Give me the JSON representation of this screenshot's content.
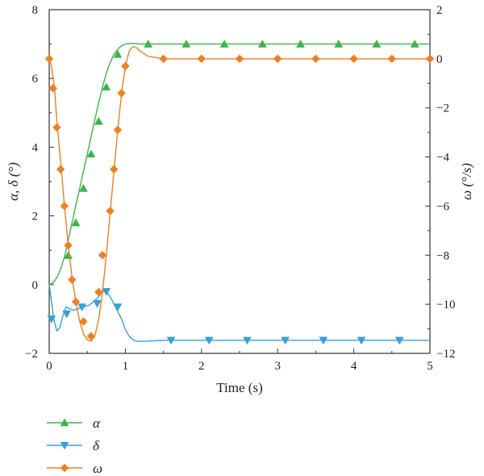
{
  "chart_data": {
    "type": "line",
    "xlabel": "Time (s)",
    "ylabel_left": "α, δ (°)",
    "ylabel_right": "ω (°/s)",
    "xlim": [
      0,
      5
    ],
    "ylim_left": [
      -2,
      8
    ],
    "ylim_right": [
      -12,
      2
    ],
    "xticks": [
      0,
      1,
      2,
      3,
      4,
      5
    ],
    "yticks_left": [
      -2,
      0,
      2,
      4,
      6,
      8
    ],
    "yticks_right": [
      -12,
      -10,
      -8,
      -6,
      -4,
      -2,
      0,
      2
    ],
    "grid": false,
    "legend_position": "bottom-left",
    "series": [
      {
        "name": "α",
        "axis": "left",
        "color": "#3db54a",
        "marker": "triangle-up",
        "x": [
          0,
          0.05,
          0.1,
          0.15,
          0.2,
          0.25,
          0.3,
          0.35,
          0.4,
          0.45,
          0.5,
          0.55,
          0.6,
          0.65,
          0.7,
          0.75,
          0.8,
          0.85,
          0.9,
          0.95,
          1.0,
          1.1,
          1.2,
          1.3,
          1.5,
          2,
          3,
          4,
          5
        ],
        "y": [
          0,
          0.05,
          0.2,
          0.45,
          0.8,
          1.3,
          1.8,
          2.3,
          2.8,
          3.3,
          3.8,
          4.3,
          4.8,
          5.3,
          5.75,
          6.15,
          6.45,
          6.7,
          6.85,
          6.95,
          7.0,
          7.02,
          7.0,
          7.0,
          7.0,
          7.0,
          7.0,
          7.0,
          7.0
        ],
        "markers_x": [
          0.25,
          0.35,
          0.45,
          0.55,
          0.65,
          0.75,
          0.9,
          1.3,
          1.8,
          2.3,
          2.8,
          3.3,
          3.8,
          4.3,
          4.8
        ],
        "markers_y": [
          0.85,
          1.8,
          2.8,
          3.8,
          4.75,
          5.75,
          6.7,
          7.0,
          7.0,
          7.0,
          7.0,
          7.0,
          7.0,
          7.0,
          7.0
        ]
      },
      {
        "name": "δ",
        "axis": "left",
        "color": "#3a9fd8",
        "marker": "triangle-down",
        "x": [
          0,
          0.03,
          0.06,
          0.1,
          0.14,
          0.18,
          0.22,
          0.27,
          0.32,
          0.38,
          0.45,
          0.52,
          0.58,
          0.65,
          0.7,
          0.75,
          0.8,
          0.87,
          0.95,
          1.0,
          1.05,
          1.1,
          1.15,
          1.25,
          1.5,
          2,
          3,
          4,
          5
        ],
        "y": [
          0,
          -0.5,
          -1.0,
          -1.35,
          -1.25,
          -0.9,
          -0.65,
          -0.7,
          -0.75,
          -0.7,
          -0.65,
          -0.6,
          -0.5,
          -0.35,
          -0.2,
          -0.2,
          -0.35,
          -0.65,
          -1.0,
          -1.3,
          -1.5,
          -1.6,
          -1.65,
          -1.65,
          -1.62,
          -1.62,
          -1.62,
          -1.62,
          -1.62
        ],
        "markers_x": [
          0.03,
          0.23,
          0.43,
          0.63,
          0.75,
          0.9,
          1.6,
          2.1,
          2.6,
          3.1,
          3.6,
          4.1,
          4.6
        ],
        "markers_y": [
          -1.0,
          -0.85,
          -0.65,
          -0.55,
          -0.2,
          -0.65,
          -1.62,
          -1.62,
          -1.62,
          -1.62,
          -1.62,
          -1.62,
          -1.62
        ]
      },
      {
        "name": "ω",
        "axis": "right",
        "color": "#f07f20",
        "marker": "diamond",
        "x": [
          0,
          0.03,
          0.07,
          0.1,
          0.15,
          0.2,
          0.25,
          0.3,
          0.35,
          0.4,
          0.45,
          0.5,
          0.55,
          0.6,
          0.65,
          0.7,
          0.75,
          0.8,
          0.85,
          0.9,
          0.95,
          1.0,
          1.05,
          1.1,
          1.15,
          1.2,
          1.3,
          1.5,
          2,
          3,
          4,
          5
        ],
        "y": [
          0,
          -0.3,
          -1.2,
          -2.5,
          -4.2,
          -6.0,
          -7.6,
          -8.9,
          -9.9,
          -10.7,
          -11.2,
          -11.45,
          -11.5,
          -11.3,
          -10.6,
          -9.5,
          -8.0,
          -6.3,
          -4.6,
          -2.9,
          -1.4,
          -0.3,
          0.3,
          0.5,
          0.45,
          0.3,
          0.1,
          0,
          0,
          0,
          0,
          0
        ],
        "markers_x": [
          0,
          0.05,
          0.1,
          0.15,
          0.2,
          0.25,
          0.3,
          0.35,
          0.45,
          0.55,
          0.65,
          0.7,
          0.8,
          0.85,
          0.9,
          0.95,
          1.0,
          1.5,
          2.0,
          2.5,
          3.0,
          3.5,
          4.0,
          4.5,
          5.0
        ],
        "markers_y": [
          0,
          -1.2,
          -2.8,
          -4.5,
          -6.0,
          -7.6,
          -9.0,
          -9.9,
          -10.7,
          -11.3,
          -9.5,
          -8.0,
          -6.2,
          -4.5,
          -2.9,
          -1.4,
          -0.3,
          0,
          0,
          0,
          0,
          0,
          0,
          0,
          0
        ]
      }
    ]
  }
}
